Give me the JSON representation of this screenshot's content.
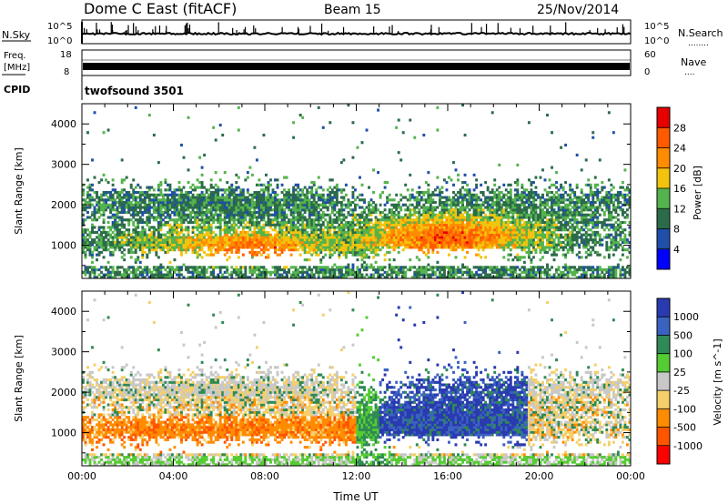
{
  "header": {
    "station": "Dome C East (fitACF)",
    "beam": "Beam 15",
    "date": "25/Nov/2014"
  },
  "labels": {
    "nsky": "N.Sky",
    "nsearch": "N.Search",
    "freq_line1": "Freq.",
    "freq_line2": "[MHz]",
    "nave": "Nave",
    "cpid": "CPID",
    "program": "twofsound 3501",
    "dots_search": "........",
    "dots_nave": "....",
    "x_axis_title": "Time UT",
    "y_axis_title": "Slant Range [km]",
    "noise_tick_high": "10^5",
    "noise_tick_low": "10^0",
    "freq_tick_high": "18",
    "freq_tick_low": "8",
    "nave_tick_high": "60",
    "nave_tick_low": "0"
  },
  "colors": {
    "power": [
      "#0000ff",
      "#1f4fa8",
      "#2c6b4a",
      "#55b34d",
      "#f2c40e",
      "#ff8c00",
      "#ff5a00",
      "#e60000"
    ],
    "velocity": [
      "#ff0000",
      "#ff5500",
      "#ff8c00",
      "#f4cf6b",
      "#c8c8c8",
      "#55cc33",
      "#2f8a55",
      "#3a62c0",
      "#2a3ab0"
    ]
  },
  "chart_data": [
    {
      "type": "heatmap",
      "name": "power",
      "ylabel": "Slant Range [km]",
      "xlabel": "",
      "x_ticks": [
        "00:00",
        "04:00",
        "08:00",
        "12:00",
        "16:00",
        "20:00",
        "00:00"
      ],
      "x_range_hours": [
        0,
        24
      ],
      "y_ticks": [
        1000,
        2000,
        3000,
        4000
      ],
      "y_range_km": [
        180,
        4500
      ],
      "colorbar": {
        "label": "Power [dB]",
        "ticks": [
          "4",
          "8",
          "12",
          "16",
          "20",
          "24",
          "28"
        ],
        "range": [
          0,
          30
        ]
      }
    },
    {
      "type": "heatmap",
      "name": "velocity",
      "ylabel": "Slant Range [km]",
      "xlabel": "Time UT",
      "x_ticks": [
        "00:00",
        "04:00",
        "08:00",
        "12:00",
        "16:00",
        "20:00",
        "00:00"
      ],
      "x_range_hours": [
        0,
        24
      ],
      "y_ticks": [
        1000,
        2000,
        3000,
        4000
      ],
      "y_range_km": [
        180,
        4500
      ],
      "colorbar": {
        "label": "Velocity [m s^-1]",
        "ticks": [
          "1000",
          "500",
          "100",
          "25",
          "-25",
          "-100",
          "-500",
          "-1000"
        ]
      }
    }
  ]
}
